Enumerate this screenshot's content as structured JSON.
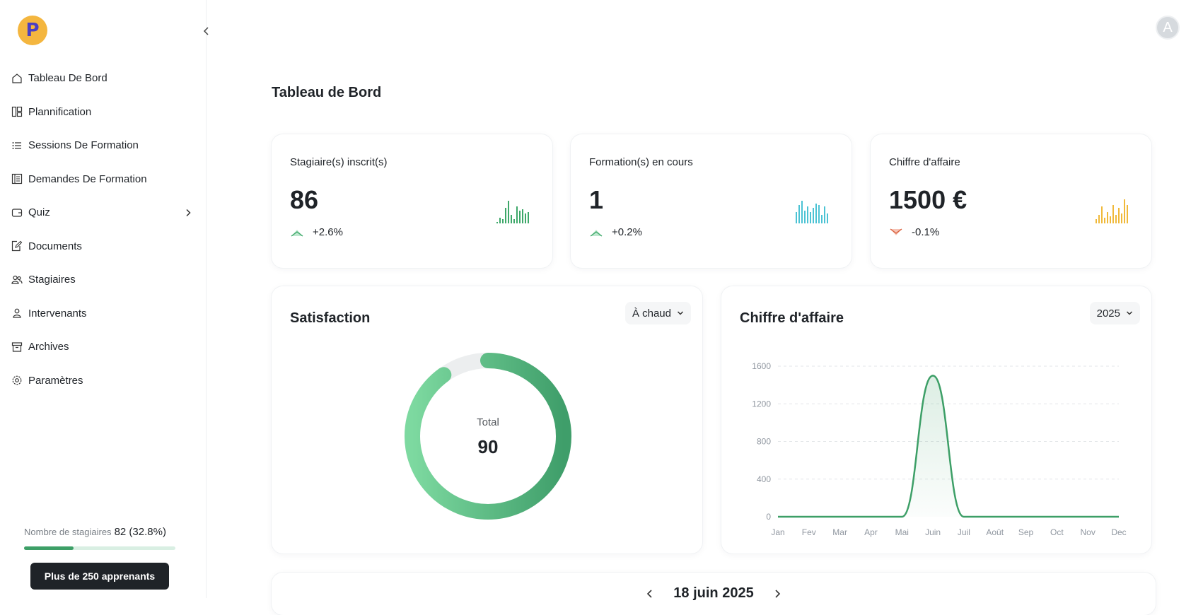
{
  "app": {
    "logo_letter": "P",
    "avatar_letter": "A"
  },
  "sidebar": {
    "items": [
      {
        "label": "Tableau De Bord",
        "icon": "home-icon"
      },
      {
        "label": "Plannification",
        "icon": "layout-icon"
      },
      {
        "label": "Sessions De Formation",
        "icon": "list-icon"
      },
      {
        "label": "Demandes De Formation",
        "icon": "document-list-icon"
      },
      {
        "label": "Quiz",
        "icon": "wallet-icon",
        "has_submenu": true
      },
      {
        "label": "Documents",
        "icon": "file-edit-icon"
      },
      {
        "label": "Stagiaires",
        "icon": "users-icon"
      },
      {
        "label": "Intervenants",
        "icon": "user-icon"
      },
      {
        "label": "Archives",
        "icon": "archive-icon"
      },
      {
        "label": "Paramètres",
        "icon": "gear-icon"
      }
    ],
    "footer": {
      "stat_label": "Nombre de stagiaires",
      "stat_value": "82 (32.8%)",
      "progress_fraction": 0.328,
      "promo_label": "Plus de 250 apprenants"
    }
  },
  "main": {
    "title": "Tableau de Bord",
    "kpis": [
      {
        "label": "Stagiaire(s) inscrit(s)",
        "value": "86",
        "delta": "+2.6%",
        "trend": "up",
        "color": "#3ea86a"
      },
      {
        "label": "Formation(s) en cours",
        "value": "1",
        "delta": "+0.2%",
        "trend": "up",
        "color": "#4cc3d4"
      },
      {
        "label": "Chiffre d'affaire",
        "value": "1500 €",
        "delta": "-0.1%",
        "trend": "down",
        "color": "#f0b93a"
      }
    ],
    "satisfaction": {
      "title": "Satisfaction",
      "filter_value": "À chaud",
      "total_label": "Total",
      "total_value": "90",
      "fraction": 0.9
    },
    "revenue": {
      "title": "Chiffre d'affaire",
      "year_value": "2025"
    },
    "date_nav": {
      "label": "18 juin 2025"
    }
  },
  "chart_data": {
    "type": "area",
    "title": "Chiffre d'affaire",
    "categories": [
      "Jan",
      "Fev",
      "Mar",
      "Apr",
      "Mai",
      "Juin",
      "Juil",
      "Août",
      "Sep",
      "Oct",
      "Nov",
      "Dec"
    ],
    "values": [
      0,
      0,
      0,
      0,
      0,
      1500,
      0,
      0,
      0,
      0,
      0,
      0
    ],
    "ylim": [
      0,
      1600
    ],
    "yticks": [
      0,
      400,
      800,
      1200,
      1600
    ],
    "grid": true,
    "color": "#3d9f67"
  }
}
